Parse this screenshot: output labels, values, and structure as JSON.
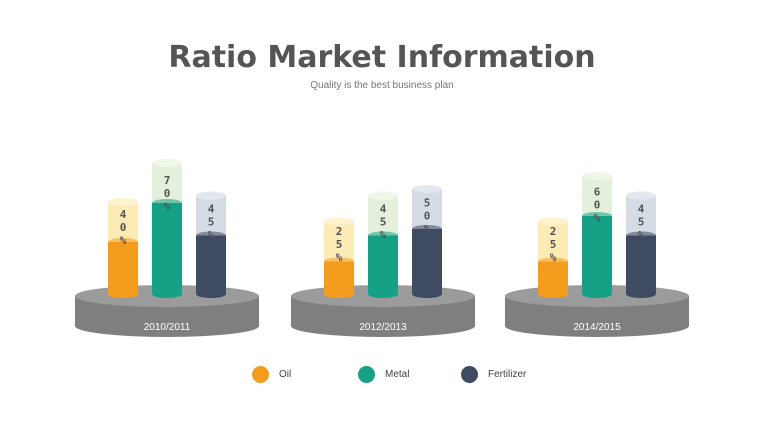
{
  "header": {
    "title": "Ratio Market Information",
    "subtitle": "Quality is the best business plan"
  },
  "colors": {
    "Oil": "#F39C1E",
    "Metal": "#16A085",
    "Fertilizer": "#3E4B60",
    "platform_top": "#9B9B9B",
    "platform_side": "#7F7F7F"
  },
  "chart_data": {
    "type": "bar",
    "categories": [
      "2010/2011",
      "2012/2013",
      "2014/2015"
    ],
    "series": [
      {
        "name": "Oil",
        "values": [
          40,
          25,
          25
        ],
        "labels": [
          "40%",
          "25%",
          "25%"
        ]
      },
      {
        "name": "Metal",
        "values": [
          70,
          45,
          60
        ],
        "labels": [
          "70%",
          "45%",
          "60%"
        ]
      },
      {
        "name": "Fertilizer",
        "values": [
          45,
          50,
          45
        ],
        "labels": [
          "45%",
          "50%",
          "45%"
        ]
      }
    ],
    "title": "Ratio Market Information",
    "legend_position": "bottom"
  },
  "legend": [
    {
      "label": "Oil",
      "color": "#F39C1E"
    },
    {
      "label": "Metal",
      "color": "#16A085"
    },
    {
      "label": "Fertilizer",
      "color": "#3E4B60"
    }
  ]
}
